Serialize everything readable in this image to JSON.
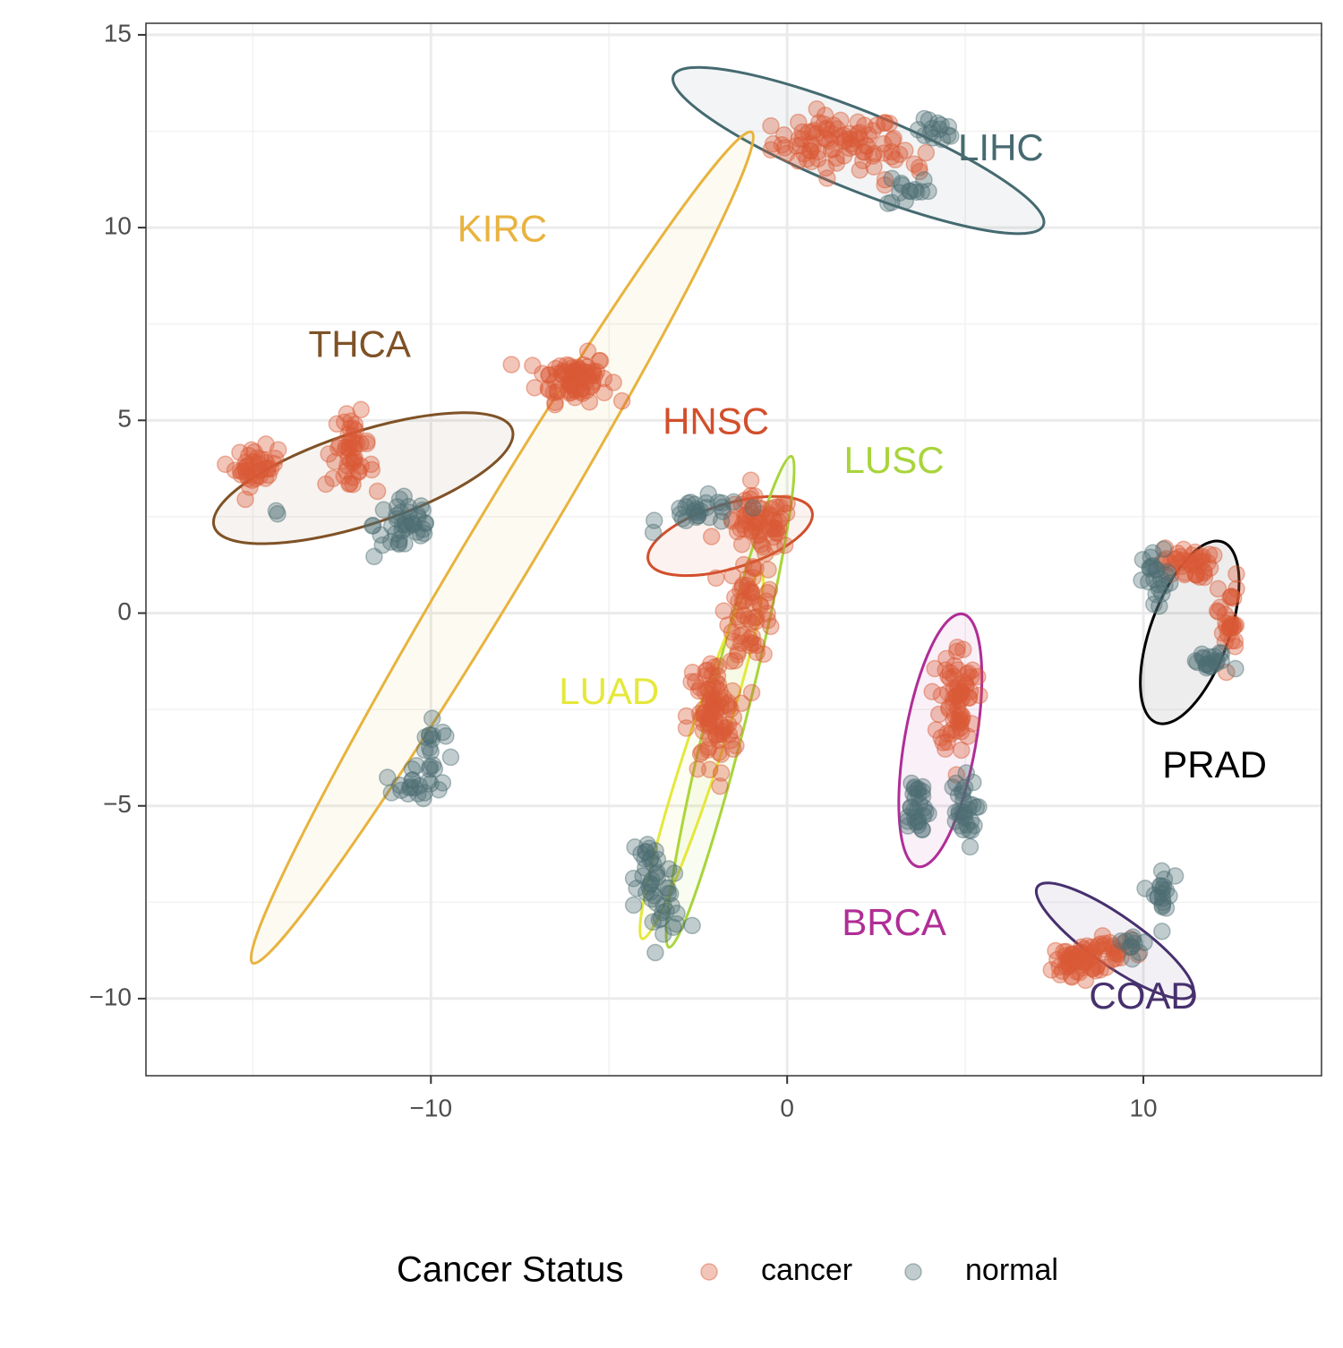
{
  "chart_data": {
    "type": "scatter",
    "title": "",
    "xlabel": "",
    "ylabel": "",
    "xlim": [
      -18,
      15
    ],
    "ylim": [
      -12,
      15.3
    ],
    "x_ticks": [
      -10,
      0,
      10
    ],
    "x_tick_labels": [
      "−10",
      "0",
      "10"
    ],
    "y_ticks": [
      -10,
      -5,
      0,
      5,
      10,
      15
    ],
    "y_tick_labels": [
      "−10",
      "−5",
      "0",
      "5",
      "10",
      "15"
    ],
    "grid": true,
    "legend": {
      "title": "Cancer Status",
      "position": "bottom",
      "entries": [
        {
          "label": "cancer",
          "color": "#d95a36"
        },
        {
          "label": "normal",
          "color": "#4e6e74"
        }
      ]
    },
    "colors": {
      "cancer": "#d95a36",
      "normal": "#4e6e74"
    },
    "groups": [
      {
        "name": "LIHC",
        "color": "#456a70",
        "label_pos": [
          6.0,
          12.0
        ],
        "ellipse": {
          "center": [
            2.0,
            12.0
          ],
          "rx": 5.6,
          "ry": 1.1,
          "angle_deg": -22
        },
        "clusters": [
          {
            "status": "cancer",
            "center": [
              1.4,
              12.2
            ],
            "sx": 0.9,
            "sy": 0.35,
            "n": 80
          },
          {
            "status": "cancer",
            "center": [
              3.0,
              11.6
            ],
            "sx": 0.6,
            "sy": 0.4,
            "n": 12
          },
          {
            "status": "normal",
            "center": [
              4.2,
              12.5
            ],
            "sx": 0.3,
            "sy": 0.15,
            "n": 14
          },
          {
            "status": "normal",
            "center": [
              3.4,
              11.0
            ],
            "sx": 0.3,
            "sy": 0.25,
            "n": 14
          }
        ]
      },
      {
        "name": "KIRC",
        "color": "#e8b33e",
        "label_pos": [
          -8.0,
          9.9
        ],
        "ellipse": {
          "center": [
            -8.0,
            1.7
          ],
          "rx": 13.6,
          "ry": 0.95,
          "angle_deg": 59
        },
        "clusters": [
          {
            "status": "cancer",
            "center": [
              -6.0,
              6.1
            ],
            "sx": 0.5,
            "sy": 0.3,
            "n": 80
          },
          {
            "status": "normal",
            "center": [
              -10.5,
              -4.5
            ],
            "sx": 0.4,
            "sy": 0.2,
            "n": 18
          },
          {
            "status": "normal",
            "center": [
              -10.0,
              -3.6
            ],
            "sx": 0.2,
            "sy": 0.5,
            "n": 18
          }
        ]
      },
      {
        "name": "THCA",
        "color": "#7f5226",
        "label_pos": [
          -12.0,
          6.9
        ],
        "ellipse": {
          "center": [
            -11.9,
            3.5
          ],
          "rx": 4.4,
          "ry": 1.3,
          "angle_deg": 18
        },
        "clusters": [
          {
            "status": "cancer",
            "center": [
              -14.9,
              3.8
            ],
            "sx": 0.3,
            "sy": 0.25,
            "n": 40
          },
          {
            "status": "cancer",
            "center": [
              -12.2,
              4.4
            ],
            "sx": 0.25,
            "sy": 0.4,
            "n": 30
          },
          {
            "status": "cancer",
            "center": [
              -12.4,
              3.8
            ],
            "sx": 0.4,
            "sy": 0.25,
            "n": 18
          },
          {
            "status": "normal",
            "center": [
              -10.7,
              2.3
            ],
            "sx": 0.45,
            "sy": 0.45,
            "n": 40
          },
          {
            "status": "normal",
            "center": [
              -14.3,
              2.6
            ],
            "sx": 0.05,
            "sy": 0.05,
            "n": 2
          }
        ]
      },
      {
        "name": "HNSC",
        "color": "#d24f2c",
        "label_pos": [
          -2.0,
          4.9
        ],
        "ellipse": {
          "center": [
            -1.6,
            2.0
          ],
          "rx": 2.4,
          "ry": 0.9,
          "angle_deg": 17
        },
        "clusters": [
          {
            "status": "cancer",
            "center": [
              -0.8,
              2.3
            ],
            "sx": 0.5,
            "sy": 0.35,
            "n": 60
          },
          {
            "status": "normal",
            "center": [
              -2.4,
              2.6
            ],
            "sx": 0.6,
            "sy": 0.2,
            "n": 28
          }
        ]
      },
      {
        "name": "LUSC",
        "color": "#a8d43b",
        "label_pos": [
          3.0,
          3.9
        ],
        "ellipse": {
          "center": [
            -1.6,
            -2.3
          ],
          "rx": 7.1,
          "ry": 0.55,
          "angle_deg": 76
        },
        "clusters": [
          {
            "status": "cancer",
            "center": [
              -1.0,
              0.2
            ],
            "sx": 0.35,
            "sy": 0.7,
            "n": 60
          },
          {
            "status": "normal",
            "center": [
              -3.5,
              -7.6
            ],
            "sx": 0.35,
            "sy": 0.3,
            "n": 24
          }
        ]
      },
      {
        "name": "LUAD",
        "color": "#e5e83b",
        "label_pos": [
          -5.0,
          -2.1
        ],
        "ellipse": {
          "center": [
            -2.4,
            -3.7
          ],
          "rx": 5.4,
          "ry": 0.5,
          "angle_deg": 72
        },
        "clusters": [
          {
            "status": "cancer",
            "center": [
              -2.1,
              -2.7
            ],
            "sx": 0.35,
            "sy": 0.8,
            "n": 90
          },
          {
            "status": "normal",
            "center": [
              -3.8,
              -6.5
            ],
            "sx": 0.3,
            "sy": 0.4,
            "n": 24
          }
        ]
      },
      {
        "name": "BRCA",
        "color": "#b02d96",
        "label_pos": [
          3.0,
          -8.1
        ],
        "ellipse": {
          "center": [
            4.3,
            -3.3
          ],
          "rx": 3.6,
          "ry": 1.0,
          "angle_deg": 80
        },
        "clusters": [
          {
            "status": "cancer",
            "center": [
              4.8,
              -2.2
            ],
            "sx": 0.25,
            "sy": 0.7,
            "n": 70
          },
          {
            "status": "normal",
            "center": [
              3.6,
              -5.0
            ],
            "sx": 0.2,
            "sy": 0.45,
            "n": 30
          },
          {
            "status": "normal",
            "center": [
              4.9,
              -5.2
            ],
            "sx": 0.2,
            "sy": 0.45,
            "n": 30
          }
        ]
      },
      {
        "name": "PRAD",
        "color": "#000000",
        "label_pos": [
          12.0,
          -4.0
        ],
        "ellipse": {
          "center": [
            11.3,
            -0.5
          ],
          "rx": 2.7,
          "ry": 1.1,
          "angle_deg": 70
        },
        "clusters": [
          {
            "status": "cancer",
            "center": [
              11.2,
              1.3
            ],
            "sx": 0.35,
            "sy": 0.2,
            "n": 40
          },
          {
            "status": "cancer",
            "center": [
              12.4,
              -0.2
            ],
            "sx": 0.15,
            "sy": 0.6,
            "n": 30
          },
          {
            "status": "normal",
            "center": [
              10.4,
              0.8
            ],
            "sx": 0.2,
            "sy": 0.4,
            "n": 24
          },
          {
            "status": "normal",
            "center": [
              11.9,
              -1.3
            ],
            "sx": 0.3,
            "sy": 0.15,
            "n": 20
          }
        ]
      },
      {
        "name": "COAD",
        "color": "#47306e",
        "label_pos": [
          10.0,
          -10.0
        ],
        "ellipse": {
          "center": [
            9.2,
            -8.5
          ],
          "rx": 2.65,
          "ry": 0.7,
          "angle_deg": -35
        },
        "clusters": [
          {
            "status": "cancer",
            "center": [
              8.2,
              -9.0
            ],
            "sx": 0.35,
            "sy": 0.2,
            "n": 60
          },
          {
            "status": "cancer",
            "center": [
              9.1,
              -8.7
            ],
            "sx": 0.35,
            "sy": 0.15,
            "n": 20
          },
          {
            "status": "normal",
            "center": [
              10.5,
              -7.3
            ],
            "sx": 0.15,
            "sy": 0.4,
            "n": 20
          },
          {
            "status": "normal",
            "center": [
              9.8,
              -8.5
            ],
            "sx": 0.25,
            "sy": 0.15,
            "n": 10
          }
        ]
      }
    ]
  }
}
